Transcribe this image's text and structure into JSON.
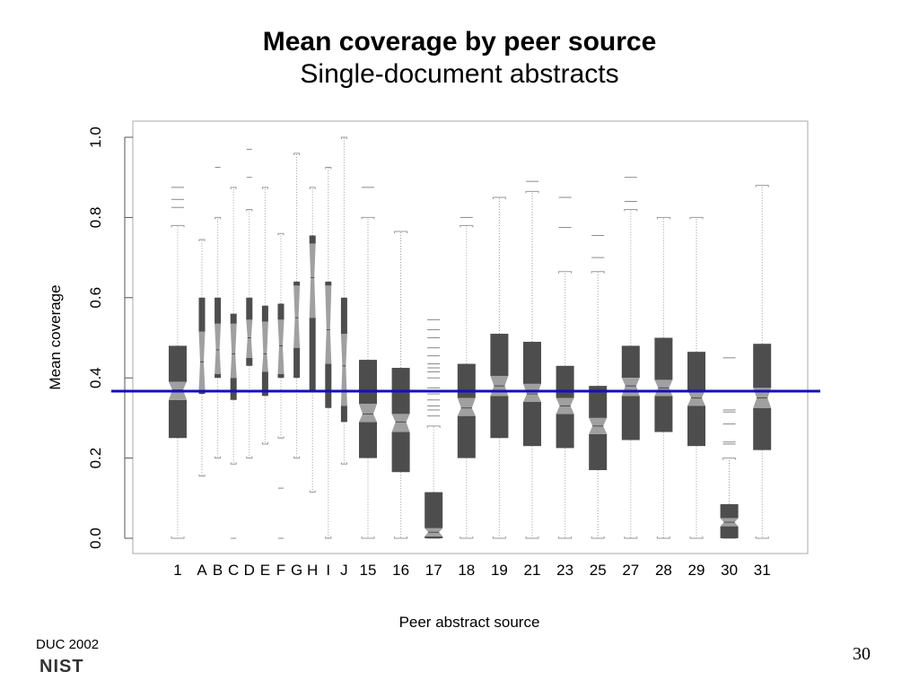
{
  "chart_data": {
    "type": "box",
    "title": "Mean coverage by peer source",
    "subtitle": "Single-document abstracts",
    "xlabel": "Peer abstract source",
    "ylabel": "Mean coverage",
    "ylim": [
      0,
      1.0
    ],
    "yticks": [
      "0.0",
      "0.2",
      "0.4",
      "0.6",
      "0.8",
      "1.0"
    ],
    "grid": false,
    "reference_line": {
      "value": 0.367,
      "color": "#1111bb"
    },
    "colors": {
      "box": "#4d4d4d",
      "notch": "#a0a0a0",
      "whisker": "#999999",
      "outlier": "#888888",
      "frame": "#aaaaaa"
    },
    "categories": [
      "1",
      "A",
      "B",
      "C",
      "D",
      "E",
      "F",
      "G",
      "H",
      "I",
      "J",
      "15",
      "16",
      "17",
      "18",
      "19",
      "21",
      "23",
      "25",
      "27",
      "28",
      "29",
      "30",
      "31"
    ],
    "boxes": [
      {
        "label": "1",
        "q1": 0.25,
        "median": 0.37,
        "q3": 0.48,
        "notch": [
          0.345,
          0.39
        ],
        "whisker_low": 0.0,
        "whisker_high": 0.78,
        "outliers": [
          0.825,
          0.845,
          0.875
        ]
      },
      {
        "label": "A",
        "q1": 0.36,
        "median": 0.44,
        "q3": 0.6,
        "notch": [
          0.37,
          0.515
        ],
        "whisker_low": 0.155,
        "whisker_high": 0.745,
        "outliers": []
      },
      {
        "label": "B",
        "q1": 0.4,
        "median": 0.47,
        "q3": 0.6,
        "notch": [
          0.41,
          0.535
        ],
        "whisker_low": 0.2,
        "whisker_high": 0.8,
        "outliers": [
          0.925
        ]
      },
      {
        "label": "C",
        "q1": 0.345,
        "median": 0.46,
        "q3": 0.56,
        "notch": [
          0.4,
          0.535
        ],
        "whisker_low": 0.185,
        "whisker_high": 0.875,
        "outliers": [
          0.0
        ]
      },
      {
        "label": "D",
        "q1": 0.43,
        "median": 0.5,
        "q3": 0.6,
        "notch": [
          0.45,
          0.545
        ],
        "whisker_low": 0.2,
        "whisker_high": 0.82,
        "outliers": [
          0.9,
          0.97
        ]
      },
      {
        "label": "E",
        "q1": 0.355,
        "median": 0.46,
        "q3": 0.58,
        "notch": [
          0.415,
          0.54
        ],
        "whisker_low": 0.235,
        "whisker_high": 0.875,
        "outliers": []
      },
      {
        "label": "F",
        "q1": 0.4,
        "median": 0.48,
        "q3": 0.585,
        "notch": [
          0.41,
          0.545
        ],
        "whisker_low": 0.25,
        "whisker_high": 0.76,
        "outliers": [
          0.125,
          0.0
        ]
      },
      {
        "label": "G",
        "q1": 0.4,
        "median": 0.55,
        "q3": 0.64,
        "notch": [
          0.475,
          0.63
        ],
        "whisker_low": 0.2,
        "whisker_high": 0.96,
        "outliers": []
      },
      {
        "label": "H",
        "q1": 0.365,
        "median": 0.65,
        "q3": 0.755,
        "notch": [
          0.55,
          0.735
        ],
        "whisker_low": 0.115,
        "whisker_high": 0.875,
        "outliers": []
      },
      {
        "label": "I",
        "q1": 0.325,
        "median": 0.52,
        "q3": 0.64,
        "notch": [
          0.435,
          0.63
        ],
        "whisker_low": 0.0,
        "whisker_high": 0.925,
        "outliers": []
      },
      {
        "label": "J",
        "q1": 0.29,
        "median": 0.43,
        "q3": 0.6,
        "notch": [
          0.33,
          0.51
        ],
        "whisker_low": 0.185,
        "whisker_high": 1.0,
        "outliers": []
      },
      {
        "label": "15",
        "q1": 0.2,
        "median": 0.31,
        "q3": 0.445,
        "notch": [
          0.29,
          0.335
        ],
        "whisker_low": 0.0,
        "whisker_high": 0.8,
        "outliers": [
          0.875
        ]
      },
      {
        "label": "16",
        "q1": 0.165,
        "median": 0.29,
        "q3": 0.425,
        "notch": [
          0.265,
          0.31
        ],
        "whisker_low": 0.0,
        "whisker_high": 0.765,
        "outliers": []
      },
      {
        "label": "17",
        "q1": 0.0,
        "median": 0.015,
        "q3": 0.115,
        "notch": [
          0.005,
          0.025
        ],
        "whisker_low": 0.0,
        "whisker_high": 0.28,
        "outliers": [
          0.305,
          0.32,
          0.33,
          0.345,
          0.36,
          0.375,
          0.4,
          0.415,
          0.425,
          0.435,
          0.455,
          0.475,
          0.5,
          0.52,
          0.545
        ]
      },
      {
        "label": "18",
        "q1": 0.2,
        "median": 0.325,
        "q3": 0.435,
        "notch": [
          0.305,
          0.35
        ],
        "whisker_low": 0.0,
        "whisker_high": 0.78,
        "outliers": [
          0.8
        ]
      },
      {
        "label": "19",
        "q1": 0.25,
        "median": 0.38,
        "q3": 0.51,
        "notch": [
          0.355,
          0.405
        ],
        "whisker_low": 0.0,
        "whisker_high": 0.85,
        "outliers": []
      },
      {
        "label": "21",
        "q1": 0.23,
        "median": 0.36,
        "q3": 0.49,
        "notch": [
          0.34,
          0.385
        ],
        "whisker_low": 0.0,
        "whisker_high": 0.865,
        "outliers": [
          0.89
        ]
      },
      {
        "label": "23",
        "q1": 0.225,
        "median": 0.33,
        "q3": 0.43,
        "notch": [
          0.31,
          0.35
        ],
        "whisker_low": 0.0,
        "whisker_high": 0.665,
        "outliers": [
          0.775,
          0.85
        ]
      },
      {
        "label": "25",
        "q1": 0.17,
        "median": 0.28,
        "q3": 0.38,
        "notch": [
          0.26,
          0.3
        ],
        "whisker_low": 0.0,
        "whisker_high": 0.665,
        "outliers": [
          0.7,
          0.755
        ]
      },
      {
        "label": "27",
        "q1": 0.245,
        "median": 0.38,
        "q3": 0.48,
        "notch": [
          0.355,
          0.4
        ],
        "whisker_low": 0.0,
        "whisker_high": 0.82,
        "outliers": [
          0.84,
          0.9
        ]
      },
      {
        "label": "28",
        "q1": 0.265,
        "median": 0.375,
        "q3": 0.5,
        "notch": [
          0.355,
          0.395
        ],
        "whisker_low": 0.0,
        "whisker_high": 0.8,
        "outliers": []
      },
      {
        "label": "29",
        "q1": 0.23,
        "median": 0.35,
        "q3": 0.465,
        "notch": [
          0.33,
          0.37
        ],
        "whisker_low": 0.0,
        "whisker_high": 0.8,
        "outliers": []
      },
      {
        "label": "30",
        "q1": 0.0,
        "median": 0.04,
        "q3": 0.085,
        "notch": [
          0.03,
          0.05
        ],
        "whisker_low": 0.0,
        "whisker_high": 0.2,
        "outliers": [
          0.235,
          0.24,
          0.285,
          0.315,
          0.32,
          0.45
        ]
      },
      {
        "label": "31",
        "q1": 0.22,
        "median": 0.35,
        "q3": 0.485,
        "notch": [
          0.325,
          0.375
        ],
        "whisker_low": 0.0,
        "whisker_high": 0.88,
        "outliers": []
      }
    ]
  },
  "footer": {
    "conference": "DUC 2002",
    "logo_text": "NIST",
    "page_number": "30"
  }
}
